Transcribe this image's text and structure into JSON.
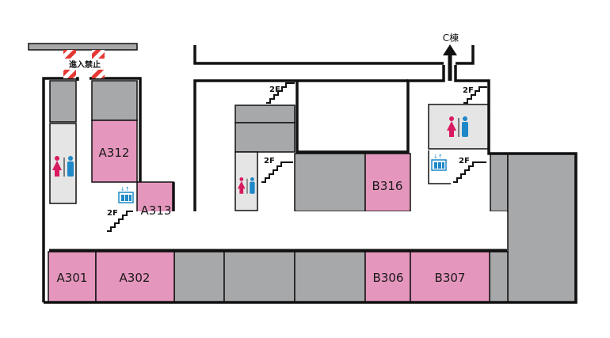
{
  "colors": {
    "wall": "#111111",
    "room_gray": "#a7a8aa",
    "room_pink": "#e596bc",
    "facility_light": "#e5e5e5",
    "female": "#d81b60",
    "male": "#1e88c8",
    "elevator": "#1e88c8",
    "hazard_red": "#e53935"
  },
  "labels": {
    "no_entry": "進入禁止",
    "direction_c": "C棟",
    "floor_2f": "2F"
  },
  "rooms": {
    "a312": "A312",
    "a313": "A313",
    "a301": "A301",
    "a302": "A302",
    "b316": "B316",
    "b306": "B306",
    "b307": "B307"
  },
  "icons": {
    "restroom": "restroom-icon",
    "elevator": "elevator-icon",
    "stairs": "stairs-icon",
    "arrow": "arrow-up-icon"
  }
}
